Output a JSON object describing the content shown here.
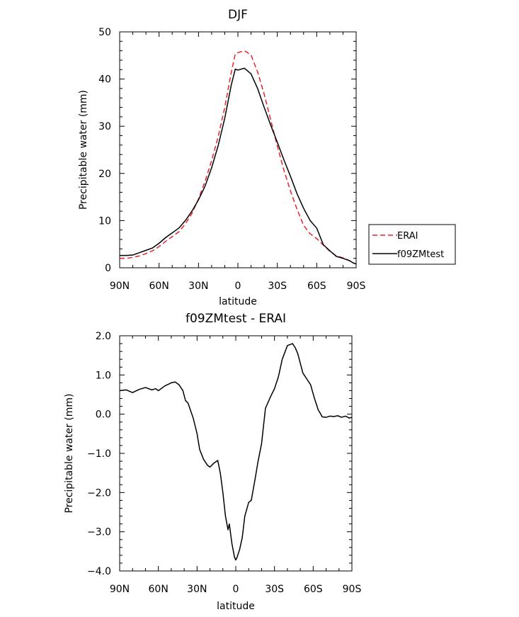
{
  "chart_data": [
    {
      "type": "line",
      "title": "DJF",
      "xlabel": "latitude",
      "ylabel": "Precipitable water (mm)",
      "xlim": [
        -90,
        90
      ],
      "ylim": [
        0,
        50
      ],
      "xtick_values": [
        -90,
        -60,
        -30,
        0,
        30,
        60,
        90
      ],
      "xtick_labels": [
        "90N",
        "60N",
        "30N",
        "0",
        "30S",
        "60S",
        "90S"
      ],
      "ytick_values": [
        0,
        10,
        20,
        30,
        40,
        50
      ],
      "ytick_labels": [
        "0",
        "10",
        "20",
        "30",
        "40",
        "50"
      ],
      "grid": false,
      "legend_position": "right",
      "series": [
        {
          "name": "ERAI",
          "color": "#e8202a",
          "dash": "dashed",
          "x": [
            -90,
            -85,
            -80,
            -75,
            -70,
            -65,
            -60,
            -55,
            -50,
            -45,
            -40,
            -35,
            -30,
            -25,
            -20,
            -15,
            -10,
            -5,
            -2,
            0,
            5,
            10,
            15,
            20,
            25,
            30,
            35,
            40,
            45,
            50,
            55,
            60,
            65,
            70,
            75,
            80,
            85,
            88,
            90
          ],
          "y": [
            2.0,
            2.0,
            2.2,
            2.5,
            3.0,
            3.6,
            4.5,
            5.6,
            6.6,
            7.6,
            9.3,
            11.5,
            14.6,
            18.3,
            22.7,
            27.8,
            34.0,
            41.5,
            45.3,
            45.6,
            46.0,
            45.1,
            41.5,
            36.8,
            31.3,
            25.8,
            20.7,
            16.3,
            12.4,
            9.0,
            7.2,
            6.2,
            4.8,
            3.5,
            2.5,
            2.1,
            1.5,
            1.0,
            0.8
          ]
        },
        {
          "name": "f09ZMtest",
          "color": "#000000",
          "dash": "solid",
          "x": [
            -90,
            -85,
            -80,
            -75,
            -70,
            -65,
            -60,
            -55,
            -50,
            -45,
            -40,
            -35,
            -30,
            -25,
            -20,
            -15,
            -10,
            -5,
            -2,
            0,
            5,
            10,
            15,
            20,
            25,
            30,
            35,
            40,
            45,
            50,
            55,
            60,
            65,
            70,
            75,
            80,
            85,
            88,
            90
          ],
          "y": [
            2.6,
            2.6,
            2.7,
            3.2,
            3.7,
            4.2,
            5.2,
            6.4,
            7.4,
            8.4,
            10.0,
            12.0,
            14.4,
            17.3,
            21.2,
            25.9,
            31.7,
            38.8,
            42.1,
            41.9,
            42.3,
            41.1,
            38.0,
            34.0,
            30.2,
            26.6,
            22.9,
            19.4,
            15.7,
            12.6,
            10.0,
            8.4,
            4.9,
            3.6,
            2.4,
            2.0,
            1.5,
            1.0,
            0.8
          ]
        }
      ]
    },
    {
      "type": "line",
      "title": "f09ZMtest - ERAI",
      "xlabel": "latitude",
      "ylabel": "Precipitable water (mm)",
      "xlim": [
        -90,
        90
      ],
      "ylim": [
        -4.0,
        2.0
      ],
      "xtick_values": [
        -90,
        -60,
        -30,
        0,
        30,
        60,
        90
      ],
      "xtick_labels": [
        "90N",
        "60N",
        "30N",
        "0",
        "30S",
        "60S",
        "90S"
      ],
      "ytick_values": [
        -4.0,
        -3.0,
        -2.0,
        -1.0,
        0.0,
        1.0,
        2.0
      ],
      "ytick_labels": [
        "−4.0",
        "−3.0",
        "−2.0",
        "−1.0",
        "0.0",
        "1.0",
        "2.0"
      ],
      "grid": false,
      "series": [
        {
          "color": "#000000",
          "x": [
            -90,
            -85,
            -80,
            -75,
            -70,
            -65,
            -62,
            -60,
            -55,
            -50,
            -47,
            -44,
            -41,
            -39,
            -37,
            -33,
            -30,
            -28,
            -25,
            -22,
            -20,
            -17,
            -14,
            -12,
            -10,
            -8,
            -6,
            -5,
            -3,
            -1,
            0,
            1,
            3,
            5,
            7,
            10,
            12,
            15,
            17,
            20,
            23,
            27,
            30,
            33,
            36,
            40,
            44,
            46,
            48,
            50,
            52,
            55,
            58,
            61,
            64,
            65,
            67,
            70,
            73,
            76,
            79,
            82,
            85,
            88,
            90
          ],
          "y": [
            0.6,
            0.62,
            0.55,
            0.63,
            0.68,
            0.62,
            0.65,
            0.6,
            0.72,
            0.8,
            0.82,
            0.75,
            0.6,
            0.35,
            0.28,
            -0.1,
            -0.5,
            -0.9,
            -1.15,
            -1.3,
            -1.35,
            -1.25,
            -1.18,
            -1.5,
            -2.0,
            -2.6,
            -2.95,
            -2.8,
            -3.3,
            -3.65,
            -3.72,
            -3.65,
            -3.45,
            -3.15,
            -2.6,
            -2.25,
            -2.2,
            -1.65,
            -1.25,
            -0.75,
            0.15,
            0.45,
            0.65,
            0.95,
            1.4,
            1.75,
            1.8,
            1.7,
            1.55,
            1.3,
            1.05,
            0.9,
            0.75,
            0.4,
            0.1,
            0.05,
            -0.07,
            -0.08,
            -0.05,
            -0.06,
            -0.04,
            -0.08,
            -0.05,
            -0.1,
            -0.08
          ]
        }
      ]
    }
  ],
  "legend": {
    "items": [
      "ERAI",
      "f09ZMtest"
    ]
  }
}
